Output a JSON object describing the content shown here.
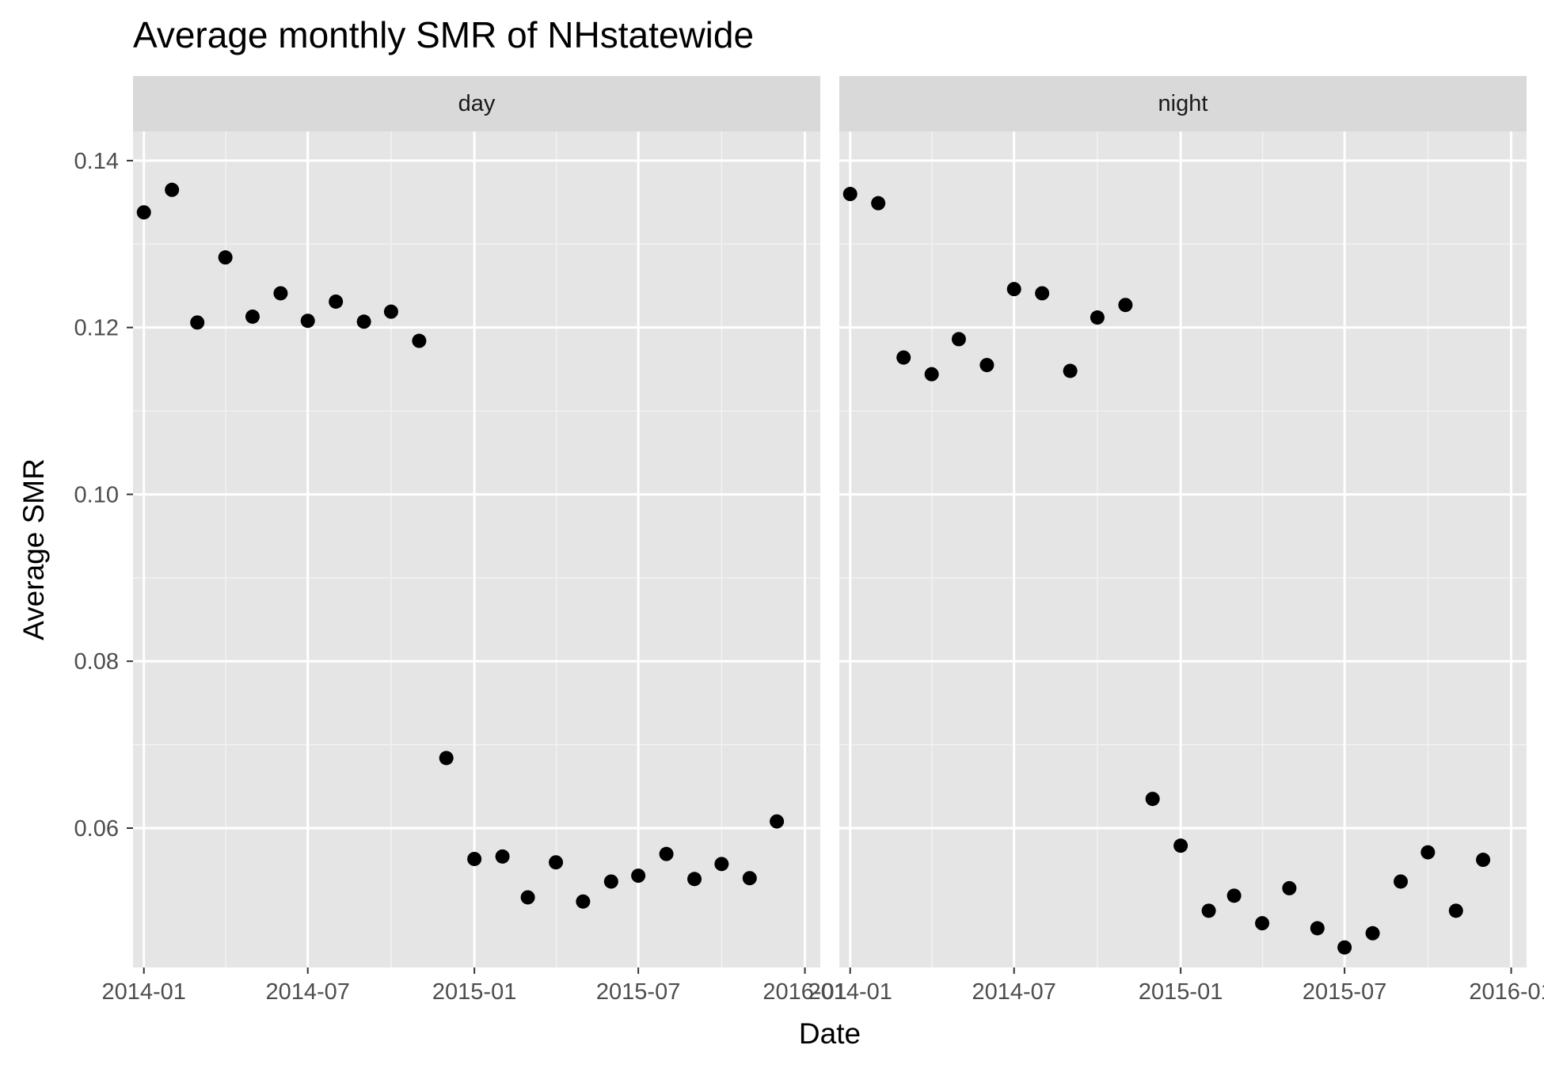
{
  "chart_data": {
    "type": "scatter",
    "title": "Average monthly SMR of NHstatewide",
    "xlabel": "Date",
    "ylabel": "Average SMR",
    "x_ticks": [
      "2014-01",
      "2014-07",
      "2015-01",
      "2015-07",
      "2016-01"
    ],
    "y_ticks": [
      "0.06",
      "0.08",
      "0.10",
      "0.12",
      "0.14"
    ],
    "ylim": [
      0.0433,
      0.1435
    ],
    "xlim": [
      "2013-12-20",
      "2016-01-18"
    ],
    "grid": true,
    "point_color": "#000000",
    "panel_background": "#e5e5e5",
    "strip_background": "#d9d9d9",
    "x": [
      "2014-01",
      "2014-02",
      "2014-03",
      "2014-04",
      "2014-05",
      "2014-06",
      "2014-07",
      "2014-08",
      "2014-09",
      "2014-10",
      "2014-11",
      "2014-12",
      "2015-01",
      "2015-02",
      "2015-03",
      "2015-04",
      "2015-05",
      "2015-06",
      "2015-07",
      "2015-08",
      "2015-09",
      "2015-10",
      "2015-11",
      "2015-12"
    ],
    "facets": [
      {
        "strip_label": "day",
        "values": [
          0.1338,
          0.1365,
          0.1206,
          0.1284,
          0.1213,
          0.1241,
          0.1208,
          0.1231,
          0.1207,
          0.1219,
          0.1184,
          0.0684,
          0.0563,
          0.0566,
          0.0517,
          0.0559,
          0.0512,
          0.0536,
          0.0543,
          0.0569,
          0.0539,
          0.0557,
          0.054,
          0.0608
        ]
      },
      {
        "strip_label": "night",
        "values": [
          0.136,
          0.1349,
          0.1164,
          0.1144,
          0.1186,
          0.1155,
          0.1246,
          0.1241,
          0.1148,
          0.1212,
          0.1227,
          0.0635,
          0.0579,
          0.0501,
          0.0519,
          0.0486,
          0.0528,
          0.048,
          0.0457,
          0.0474,
          0.0536,
          0.0571,
          0.0501,
          0.0562
        ]
      }
    ]
  }
}
